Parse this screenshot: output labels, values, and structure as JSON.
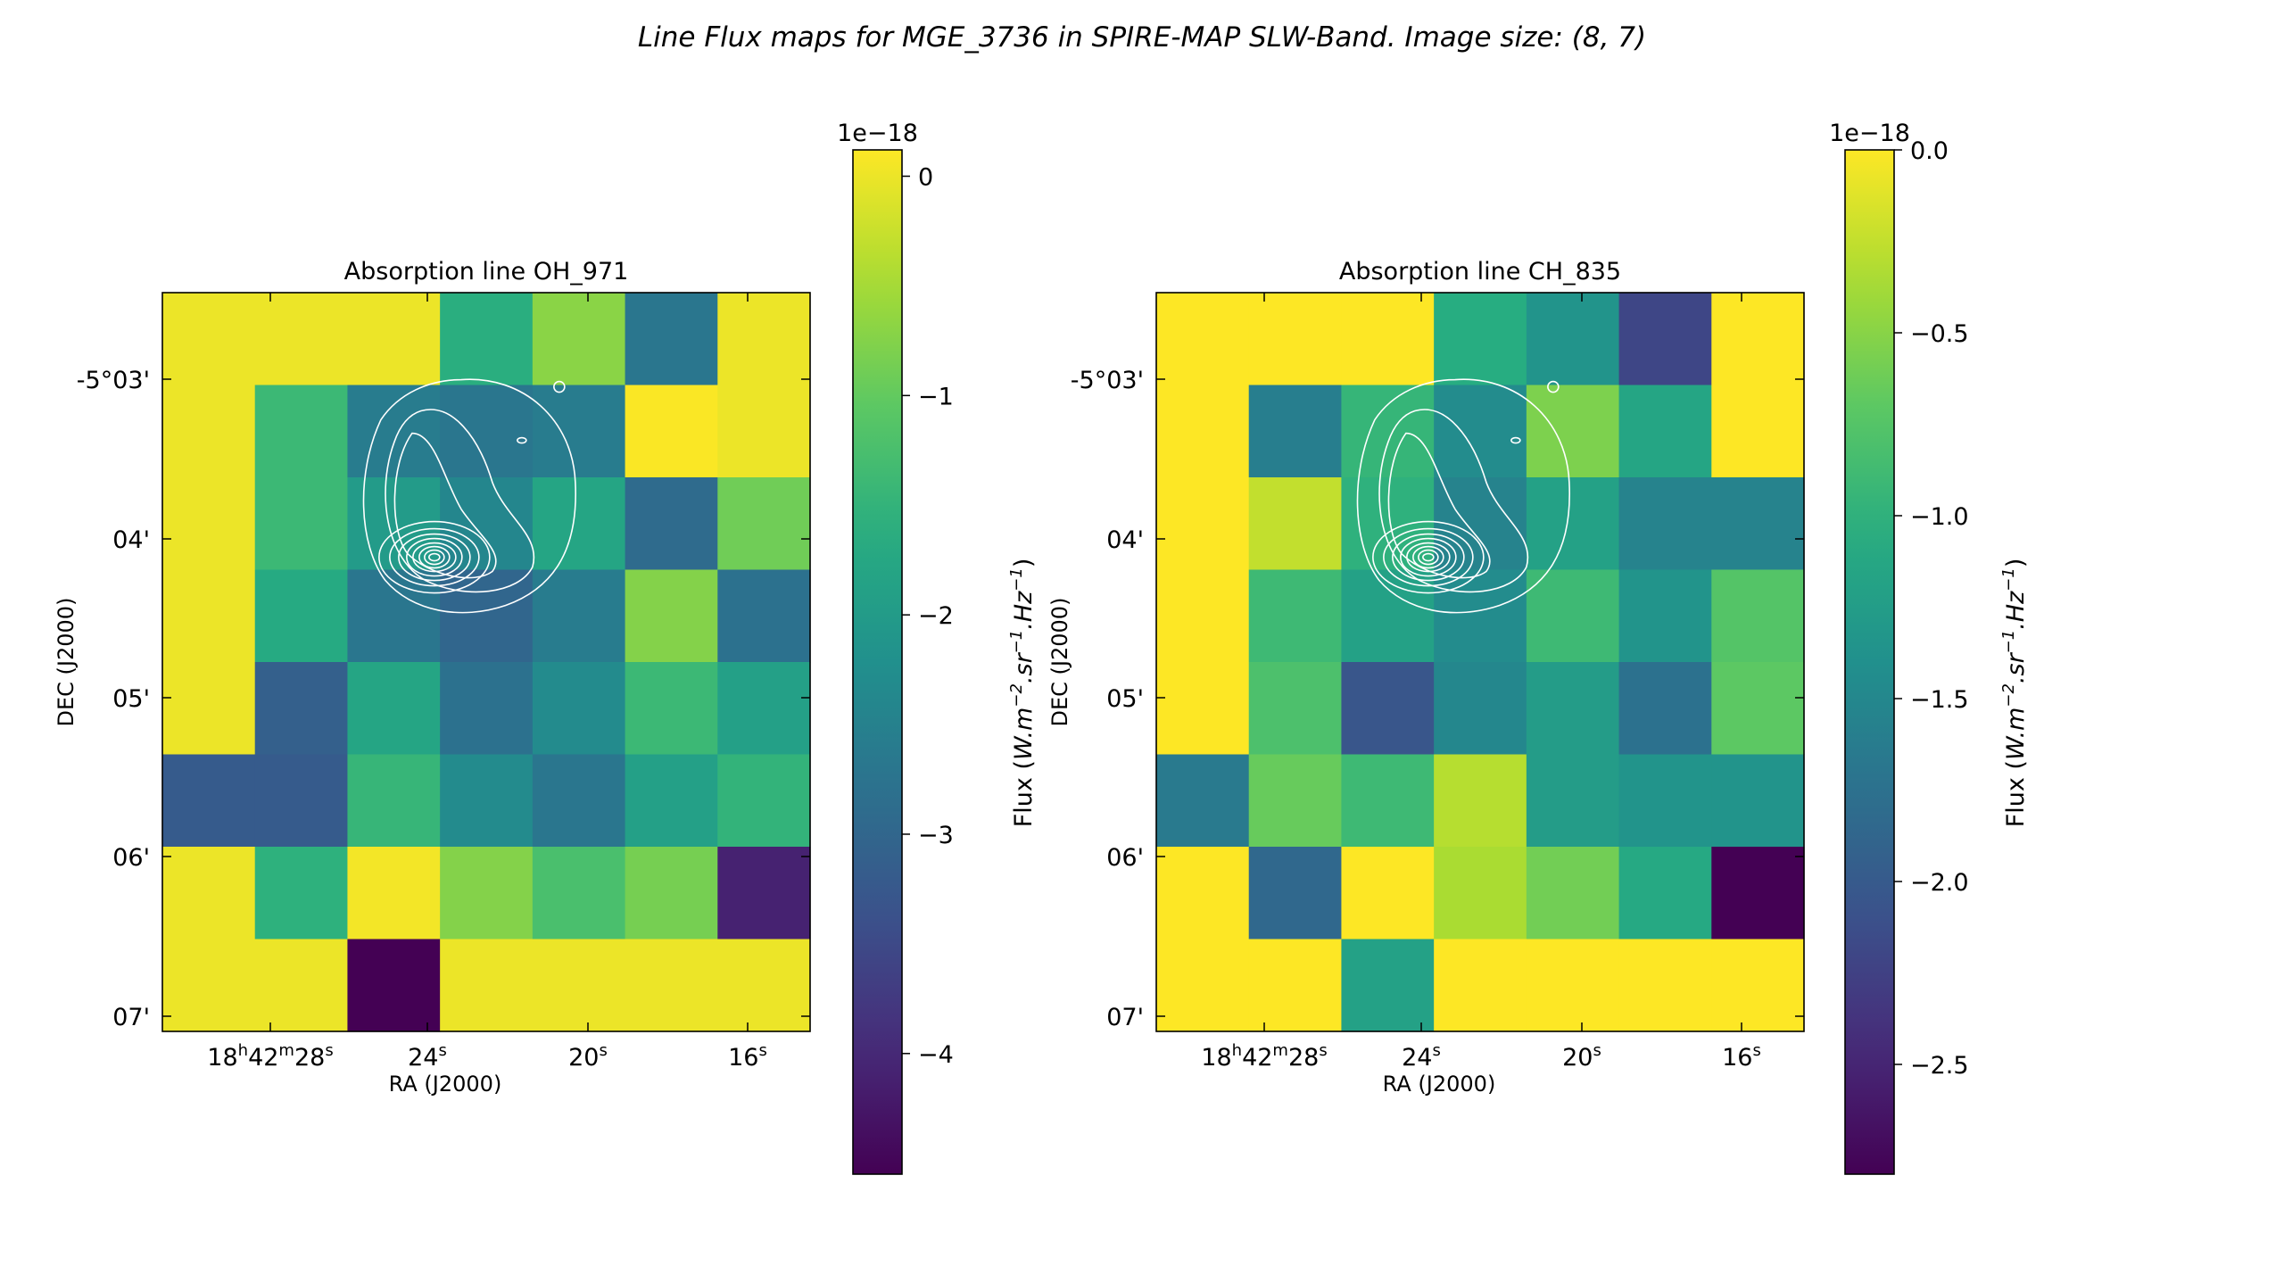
{
  "figure": {
    "title": "Line Flux maps for MGE_3736 in SPIRE-MAP SLW-Band. Image size: (8, 7)"
  },
  "chart_data": [
    {
      "type": "heatmap",
      "title": "Absorption line OH_971",
      "xlabel": "RA (J2000)",
      "ylabel": "DEC (J2000)",
      "x_ticks": [
        {
          "label": "18h42m28s",
          "main": "18",
          "sup1": "h",
          "mid": "42",
          "sup2": "m",
          "end": "28",
          "sup3": "s"
        },
        {
          "label": "24s",
          "main": "24",
          "sup": "s"
        },
        {
          "label": "20s",
          "main": "20",
          "sup": "s"
        },
        {
          "label": "16s",
          "main": "16",
          "sup": "s"
        }
      ],
      "y_ticks": [
        "-5°03'",
        "04'",
        "05'",
        "06'",
        "07'"
      ],
      "colorbar": {
        "label": "Flux (W.m⁻².sr⁻¹.Hz⁻¹)",
        "label_parts": {
          "pre": "Flux (",
          "t1": "W.m",
          "s1": "−2",
          "t2": ".sr",
          "s2": "−1",
          "t3": ".Hz",
          "s3": "−1",
          "post": ")"
        },
        "multiplier": "1e−18",
        "vmin": -4.55,
        "vmax": 0.12,
        "ticks": [
          0,
          -1,
          -2,
          -3,
          -4
        ],
        "tick_labels": [
          "0",
          "−1",
          "−2",
          "−3",
          "−4"
        ]
      },
      "colormap": "viridis",
      "grid_values": [
        [
          0.0,
          0.0,
          0.0,
          -1.6,
          -0.7,
          -2.7,
          0.0
        ],
        [
          0.0,
          -1.4,
          -2.6,
          -2.7,
          -2.6,
          0.1,
          0.0
        ],
        [
          0.0,
          -1.4,
          -2.0,
          -2.4,
          -1.8,
          -2.9,
          -0.9
        ],
        [
          0.0,
          -1.7,
          -2.7,
          -3.0,
          -2.6,
          -0.75,
          -2.8
        ],
        [
          0.0,
          -3.1,
          -1.8,
          -2.8,
          -2.3,
          -1.4,
          -1.9
        ],
        [
          -3.2,
          -3.2,
          -1.45,
          -2.3,
          -2.7,
          -1.9,
          -1.5
        ],
        [
          0.0,
          -1.55,
          0.05,
          -0.75,
          -1.25,
          -0.85,
          -4.1
        ],
        [
          0.0,
          0.0,
          -4.55,
          0.0,
          0.0,
          0.0,
          0.0
        ]
      ]
    },
    {
      "type": "heatmap",
      "title": "Absorption line CH_835",
      "xlabel": "RA (J2000)",
      "ylabel": "DEC (J2000)",
      "x_ticks": [
        {
          "label": "18h42m28s",
          "main": "18",
          "sup1": "h",
          "mid": "42",
          "sup2": "m",
          "end": "28",
          "sup3": "s"
        },
        {
          "label": "24s",
          "main": "24",
          "sup": "s"
        },
        {
          "label": "20s",
          "main": "20",
          "sup": "s"
        },
        {
          "label": "16s",
          "main": "16",
          "sup": "s"
        }
      ],
      "y_ticks": [
        "-5°03'",
        "04'",
        "05'",
        "06'",
        "07'"
      ],
      "colorbar": {
        "label": "Flux (W.m⁻².sr⁻¹.Hz⁻¹)",
        "label_parts": {
          "pre": "Flux (",
          "t1": "W.m",
          "s1": "−2",
          "t2": ".sr",
          "s2": "−1",
          "t3": ".Hz",
          "s3": "−1",
          "post": ")"
        },
        "multiplier": "1e−18",
        "vmin": -2.8,
        "vmax": 0.0,
        "ticks": [
          0.0,
          -0.5,
          -1.0,
          -1.5,
          -2.0,
          -2.5
        ],
        "tick_labels": [
          "0.0",
          "−0.5",
          "−1.0",
          "−1.5",
          "−2.0",
          "−2.5"
        ]
      },
      "colormap": "viridis",
      "grid_values": [
        [
          0.0,
          0.0,
          0.0,
          -1.05,
          -1.35,
          -2.2,
          0.0
        ],
        [
          0.0,
          -1.6,
          -0.95,
          -1.45,
          -0.55,
          -1.15,
          0.0
        ],
        [
          0.0,
          -0.25,
          -1.0,
          -1.55,
          -1.2,
          -1.55,
          -1.55
        ],
        [
          0.0,
          -0.9,
          -1.2,
          -1.45,
          -0.9,
          -1.35,
          -0.75
        ],
        [
          0.0,
          -0.8,
          -2.05,
          -1.5,
          -1.25,
          -1.75,
          -0.7
        ],
        [
          -1.65,
          -0.65,
          -0.9,
          -0.3,
          -1.25,
          -1.35,
          -1.35
        ],
        [
          0.0,
          -1.85,
          0.0,
          -0.35,
          -0.6,
          -1.1,
          -2.8
        ],
        [
          0.0,
          0.0,
          -1.2,
          0.0,
          0.0,
          0.0,
          0.0
        ]
      ]
    }
  ]
}
